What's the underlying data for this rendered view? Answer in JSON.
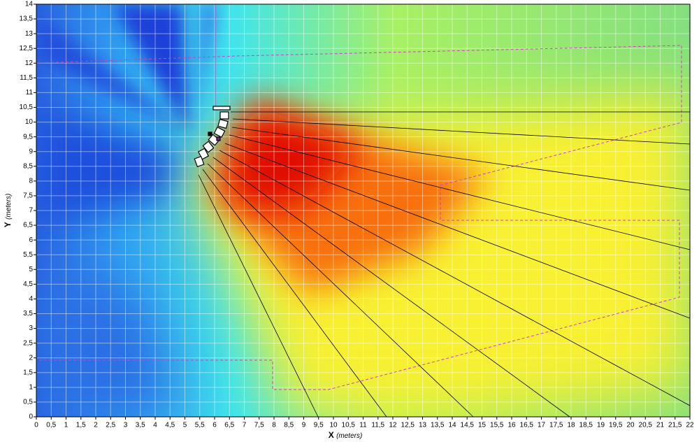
{
  "chart_data": {
    "type": "heatmap",
    "x_label": "X",
    "x_unit": "(meters)",
    "y_label": "Y",
    "y_unit": "(meters)",
    "xlim": [
      0,
      22
    ],
    "ylim": [
      0,
      14
    ],
    "grid": true,
    "xticks": [
      0,
      {
        "value": 0.5,
        "label": "0,5"
      },
      1,
      {
        "value": 1.5,
        "label": "1,5"
      },
      2,
      {
        "value": 2.5,
        "label": "2,5"
      },
      3,
      {
        "value": 3.5,
        "label": "3,5"
      },
      4,
      {
        "value": 4.5,
        "label": "4,5"
      },
      5,
      {
        "value": 5.5,
        "label": "5,5"
      },
      6,
      {
        "value": 6.5,
        "label": "6,5"
      },
      7,
      {
        "value": 7.5,
        "label": "7,5"
      },
      8,
      {
        "value": 8.5,
        "label": "8,5"
      },
      9,
      {
        "value": 9.5,
        "label": "9,5"
      },
      10,
      {
        "value": 10.5,
        "label": "10,5"
      },
      11,
      {
        "value": 11.5,
        "label": "11,5"
      },
      12,
      {
        "value": 12.5,
        "label": "12,5"
      },
      13,
      {
        "value": 13.5,
        "label": "13,5"
      },
      14,
      {
        "value": 14.5,
        "label": "14,5"
      },
      15,
      {
        "value": 15.5,
        "label": "15,5"
      },
      16,
      {
        "value": 16.5,
        "label": "16,5"
      },
      17,
      {
        "value": 17.5,
        "label": "17,5"
      },
      18,
      {
        "value": 18.5,
        "label": "18,5"
      },
      19,
      {
        "value": 19.5,
        "label": "19,5"
      },
      20,
      {
        "value": 20.5,
        "label": "20,5"
      },
      21,
      {
        "value": 21.5,
        "label": "21,5"
      },
      22
    ],
    "yticks": [
      0,
      {
        "value": 0.5,
        "label": "0,5"
      },
      1,
      {
        "value": 1.5,
        "label": "1,5"
      },
      2,
      {
        "value": 2.5,
        "label": "2,5"
      },
      3,
      {
        "value": 3.5,
        "label": "3,5"
      },
      4,
      {
        "value": 4.5,
        "label": "4,5"
      },
      5,
      {
        "value": 5.5,
        "label": "5,5"
      },
      6,
      {
        "value": 6.5,
        "label": "6,5"
      },
      7,
      {
        "value": 7.5,
        "label": "7,5"
      },
      8,
      {
        "value": 8.5,
        "label": "8,5"
      },
      9,
      {
        "value": 9.5,
        "label": "9,5"
      },
      10,
      {
        "value": 10.5,
        "label": "10,5"
      },
      11,
      {
        "value": 11.5,
        "label": "11,5"
      },
      12,
      {
        "value": 12.5,
        "label": "12,5"
      },
      13,
      {
        "value": 13.5,
        "label": "13,5"
      },
      14
    ]
  }
}
